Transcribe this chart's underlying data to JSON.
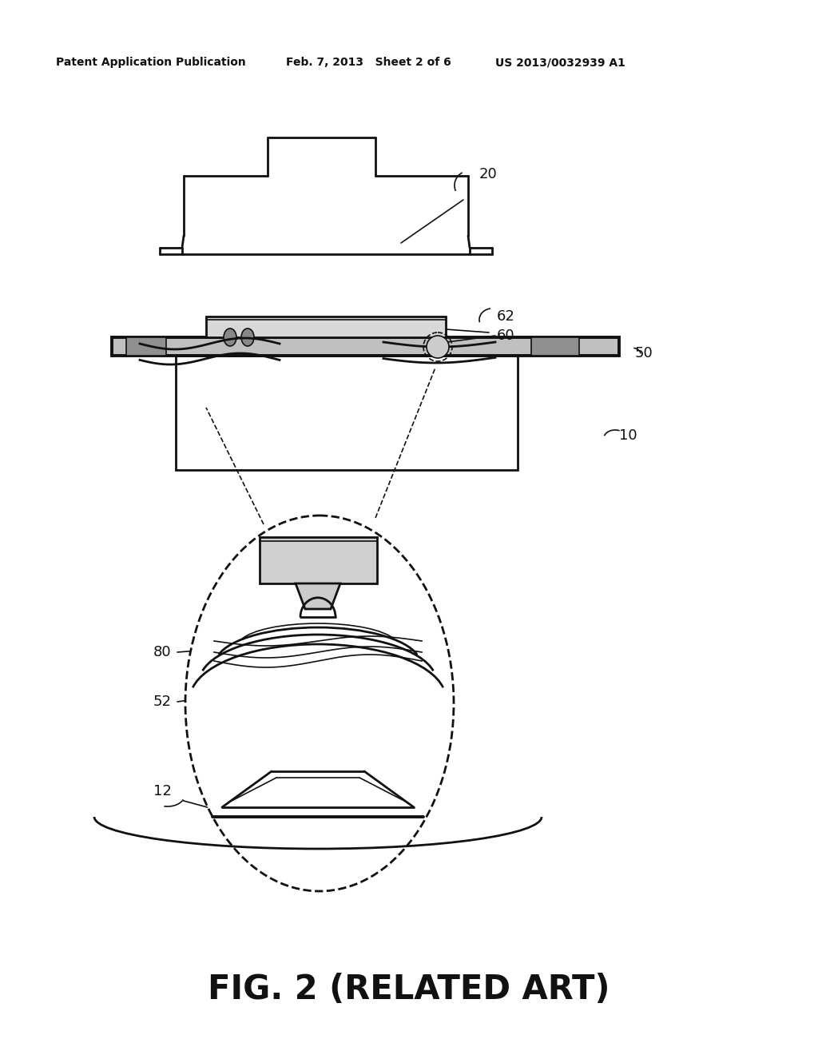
{
  "bg_color": "#ffffff",
  "line_color": "#111111",
  "header_left": "Patent Application Publication",
  "header_mid": "Feb. 7, 2013   Sheet 2 of 6",
  "header_right": "US 2013/0032939 A1",
  "footer": "FIG. 2 (RELATED ART)",
  "lw_main": 2.0,
  "lw_thin": 1.2,
  "lw_thick": 2.8
}
